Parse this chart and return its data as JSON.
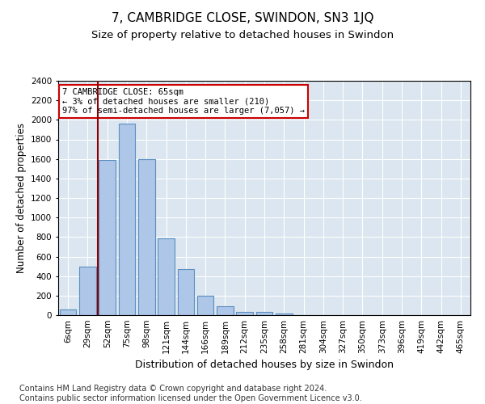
{
  "title": "7, CAMBRIDGE CLOSE, SWINDON, SN3 1JQ",
  "subtitle": "Size of property relative to detached houses in Swindon",
  "xlabel": "Distribution of detached houses by size in Swindon",
  "ylabel": "Number of detached properties",
  "footer_line1": "Contains HM Land Registry data © Crown copyright and database right 2024.",
  "footer_line2": "Contains public sector information licensed under the Open Government Licence v3.0.",
  "bar_labels": [
    "6sqm",
    "29sqm",
    "52sqm",
    "75sqm",
    "98sqm",
    "121sqm",
    "144sqm",
    "166sqm",
    "189sqm",
    "212sqm",
    "235sqm",
    "258sqm",
    "281sqm",
    "304sqm",
    "327sqm",
    "350sqm",
    "373sqm",
    "396sqm",
    "419sqm",
    "442sqm",
    "465sqm"
  ],
  "bar_values": [
    60,
    500,
    1590,
    1960,
    1600,
    790,
    470,
    200,
    90,
    35,
    30,
    20,
    0,
    0,
    0,
    0,
    0,
    0,
    0,
    0,
    0
  ],
  "bar_color": "#aec6e8",
  "bar_edge_color": "#5a8fc0",
  "bar_edge_width": 0.8,
  "ylim": [
    0,
    2400
  ],
  "yticks": [
    0,
    200,
    400,
    600,
    800,
    1000,
    1200,
    1400,
    1600,
    1800,
    2000,
    2200,
    2400
  ],
  "vline_color": "#8b0000",
  "annotation_box_text": "7 CAMBRIDGE CLOSE: 65sqm\n← 3% of detached houses are smaller (210)\n97% of semi-detached houses are larger (7,057) →",
  "annotation_box_facecolor": "white",
  "annotation_box_edgecolor": "#cc0000",
  "plot_bg_color": "#dce6f0",
  "grid_color": "white",
  "title_fontsize": 11,
  "subtitle_fontsize": 9.5,
  "tick_fontsize": 7.5,
  "ylabel_fontsize": 8.5,
  "xlabel_fontsize": 9,
  "footer_fontsize": 7,
  "annotation_fontsize": 7.5
}
